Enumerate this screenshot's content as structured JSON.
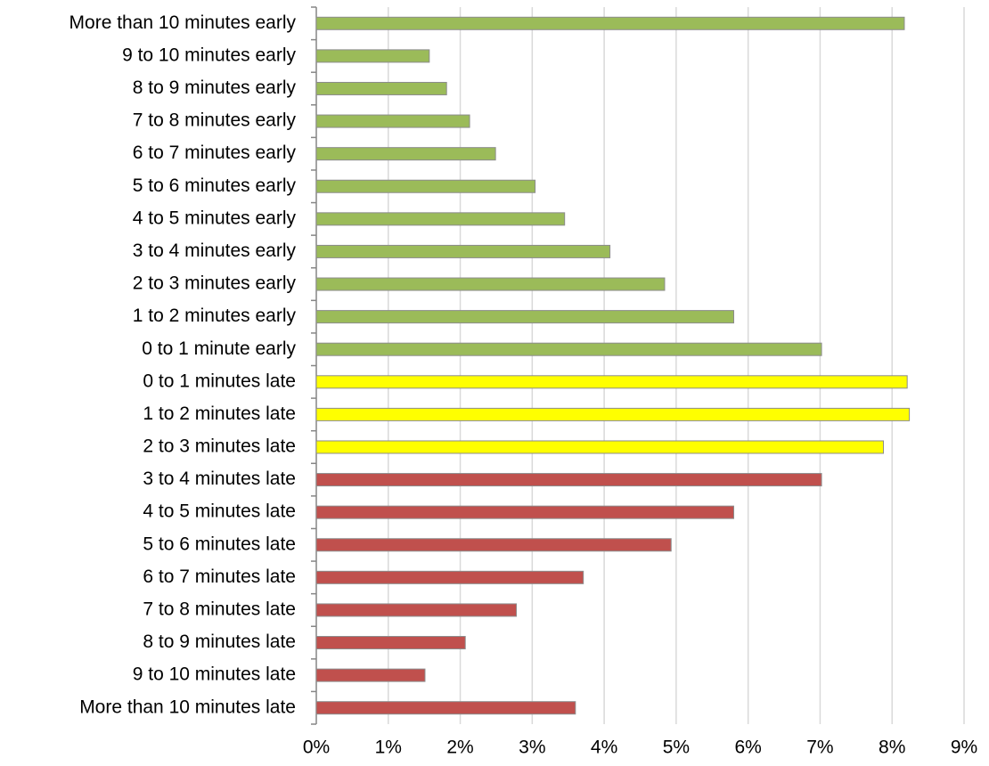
{
  "chart_data": {
    "type": "hbar",
    "categories": [
      "More than 10 minutes early",
      "9 to 10 minutes early",
      "8 to 9 minutes early",
      "7 to 8 minutes early",
      "6 to 7 minutes early",
      "5 to 6 minutes early",
      "4 to 5 minutes early",
      "3 to 4 minutes early",
      "2 to 3 minutes early",
      "1 to 2 minutes early",
      "0 to 1 minute early",
      "0 to 1 minutes late",
      "1 to 2 minutes late",
      "2 to 3 minutes late",
      "3 to 4 minutes late",
      "4 to 5 minutes late",
      "5 to 6 minutes late",
      "6 to 7 minutes late",
      "7 to 8 minutes late",
      "8 to 9 minutes late",
      "9 to 10 minutes late",
      "More than 10 minutes late"
    ],
    "values": [
      8.17,
      1.57,
      1.81,
      2.13,
      2.49,
      3.04,
      3.45,
      4.08,
      4.84,
      5.8,
      7.02,
      8.21,
      8.24,
      7.88,
      7.02,
      5.8,
      4.93,
      3.71,
      2.78,
      2.07,
      1.51,
      3.6
    ],
    "colors": [
      "#9bbb59",
      "#9bbb59",
      "#9bbb59",
      "#9bbb59",
      "#9bbb59",
      "#9bbb59",
      "#9bbb59",
      "#9bbb59",
      "#9bbb59",
      "#9bbb59",
      "#9bbb59",
      "#ffff00",
      "#ffff00",
      "#ffff00",
      "#c0504d",
      "#c0504d",
      "#c0504d",
      "#c0504d",
      "#c0504d",
      "#c0504d",
      "#c0504d",
      "#c0504d"
    ],
    "xlim": [
      0,
      9
    ],
    "xticks": [
      {
        "value": 0,
        "label": "0%"
      },
      {
        "value": 1,
        "label": "1%"
      },
      {
        "value": 2,
        "label": "2%"
      },
      {
        "value": 3,
        "label": "3%"
      },
      {
        "value": 4,
        "label": "4%"
      },
      {
        "value": 5,
        "label": "5%"
      },
      {
        "value": 6,
        "label": "6%"
      },
      {
        "value": 7,
        "label": "7%"
      },
      {
        "value": 8,
        "label": "8%"
      },
      {
        "value": 9,
        "label": "9%"
      }
    ],
    "grid": true
  }
}
